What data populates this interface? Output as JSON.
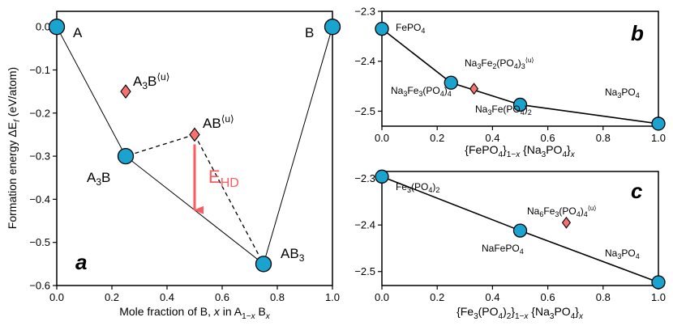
{
  "colors": {
    "circle": "#1ba3cf",
    "diamond": "#f4726f",
    "arrow": "#ff5a5f"
  },
  "chart_data": [
    {
      "panel": "a",
      "type": "scatter",
      "xlabel": "Mole fraction of B, x in A1−x Bx",
      "ylabel": "Formation energy ΔEf (eV/atom)",
      "xlim": [
        0.0,
        1.0
      ],
      "ylim": [
        -0.6,
        0.05
      ],
      "xticks": [
        "0.0",
        "0.2",
        "0.4",
        "0.6",
        "0.8",
        "1.0"
      ],
      "yticks": [
        "0.0",
        "−0.1",
        "−0.2",
        "−0.3",
        "−0.4",
        "−0.5",
        "−0.6"
      ],
      "stable": [
        {
          "label": "A",
          "x": 0.0,
          "y": 0.0
        },
        {
          "label": "A3B",
          "x": 0.25,
          "y": -0.3
        },
        {
          "label": "AB3",
          "x": 0.75,
          "y": -0.55
        },
        {
          "label": "B",
          "x": 1.0,
          "y": 0.0
        }
      ],
      "unstable": [
        {
          "label": "A3B⟨u⟩",
          "x": 0.25,
          "y": -0.15
        },
        {
          "label": "AB⟨u⟩",
          "x": 0.5,
          "y": -0.25
        }
      ],
      "annotation": "EHD",
      "ehd_arrow": {
        "x": 0.5,
        "from": -0.25,
        "to": -0.425
      }
    },
    {
      "panel": "b",
      "type": "line",
      "xlabel": "{FePO4}1−x {Na3PO4}x",
      "xlim": [
        0.0,
        1.0
      ],
      "ylim": [
        -2.53,
        -2.3
      ],
      "xticks": [
        "0.0",
        "0.2",
        "0.4",
        "0.6",
        "0.8",
        "1.0"
      ],
      "yticks": [
        "−2.3",
        "−2.4",
        "−2.5"
      ],
      "stable": [
        {
          "label": "FePO4",
          "x": 0.0,
          "y": -2.335
        },
        {
          "label": "Na3Fe3(PO4)4",
          "x": 0.25,
          "y": -2.443
        },
        {
          "label": "Na3Fe(PO4)2",
          "x": 0.5,
          "y": -2.487
        },
        {
          "label": "Na3PO4",
          "x": 1.0,
          "y": -2.525
        }
      ],
      "unstable": [
        {
          "label": "Na3Fe2(PO4)3⟨u⟩",
          "x": 0.333,
          "y": -2.455
        }
      ]
    },
    {
      "panel": "c",
      "type": "line",
      "xlabel": "{Fe3(PO4)2}1−x {Na3PO4}x",
      "xlim": [
        0.0,
        1.0
      ],
      "ylim": [
        -2.53,
        -2.28
      ],
      "xticks": [
        "0.0",
        "0.2",
        "0.4",
        "0.6",
        "0.8",
        "1.0"
      ],
      "yticks": [
        "−2.3",
        "−2.4",
        "−2.5"
      ],
      "stable": [
        {
          "label": "Fe3(PO4)2",
          "x": 0.0,
          "y": -2.296
        },
        {
          "label": "NaFePO4",
          "x": 0.5,
          "y": -2.412
        },
        {
          "label": "Na3PO4",
          "x": 1.0,
          "y": -2.523
        }
      ],
      "unstable": [
        {
          "label": "Na6Fe3(PO4)4⟨u⟩",
          "x": 0.667,
          "y": -2.395
        }
      ]
    }
  ]
}
